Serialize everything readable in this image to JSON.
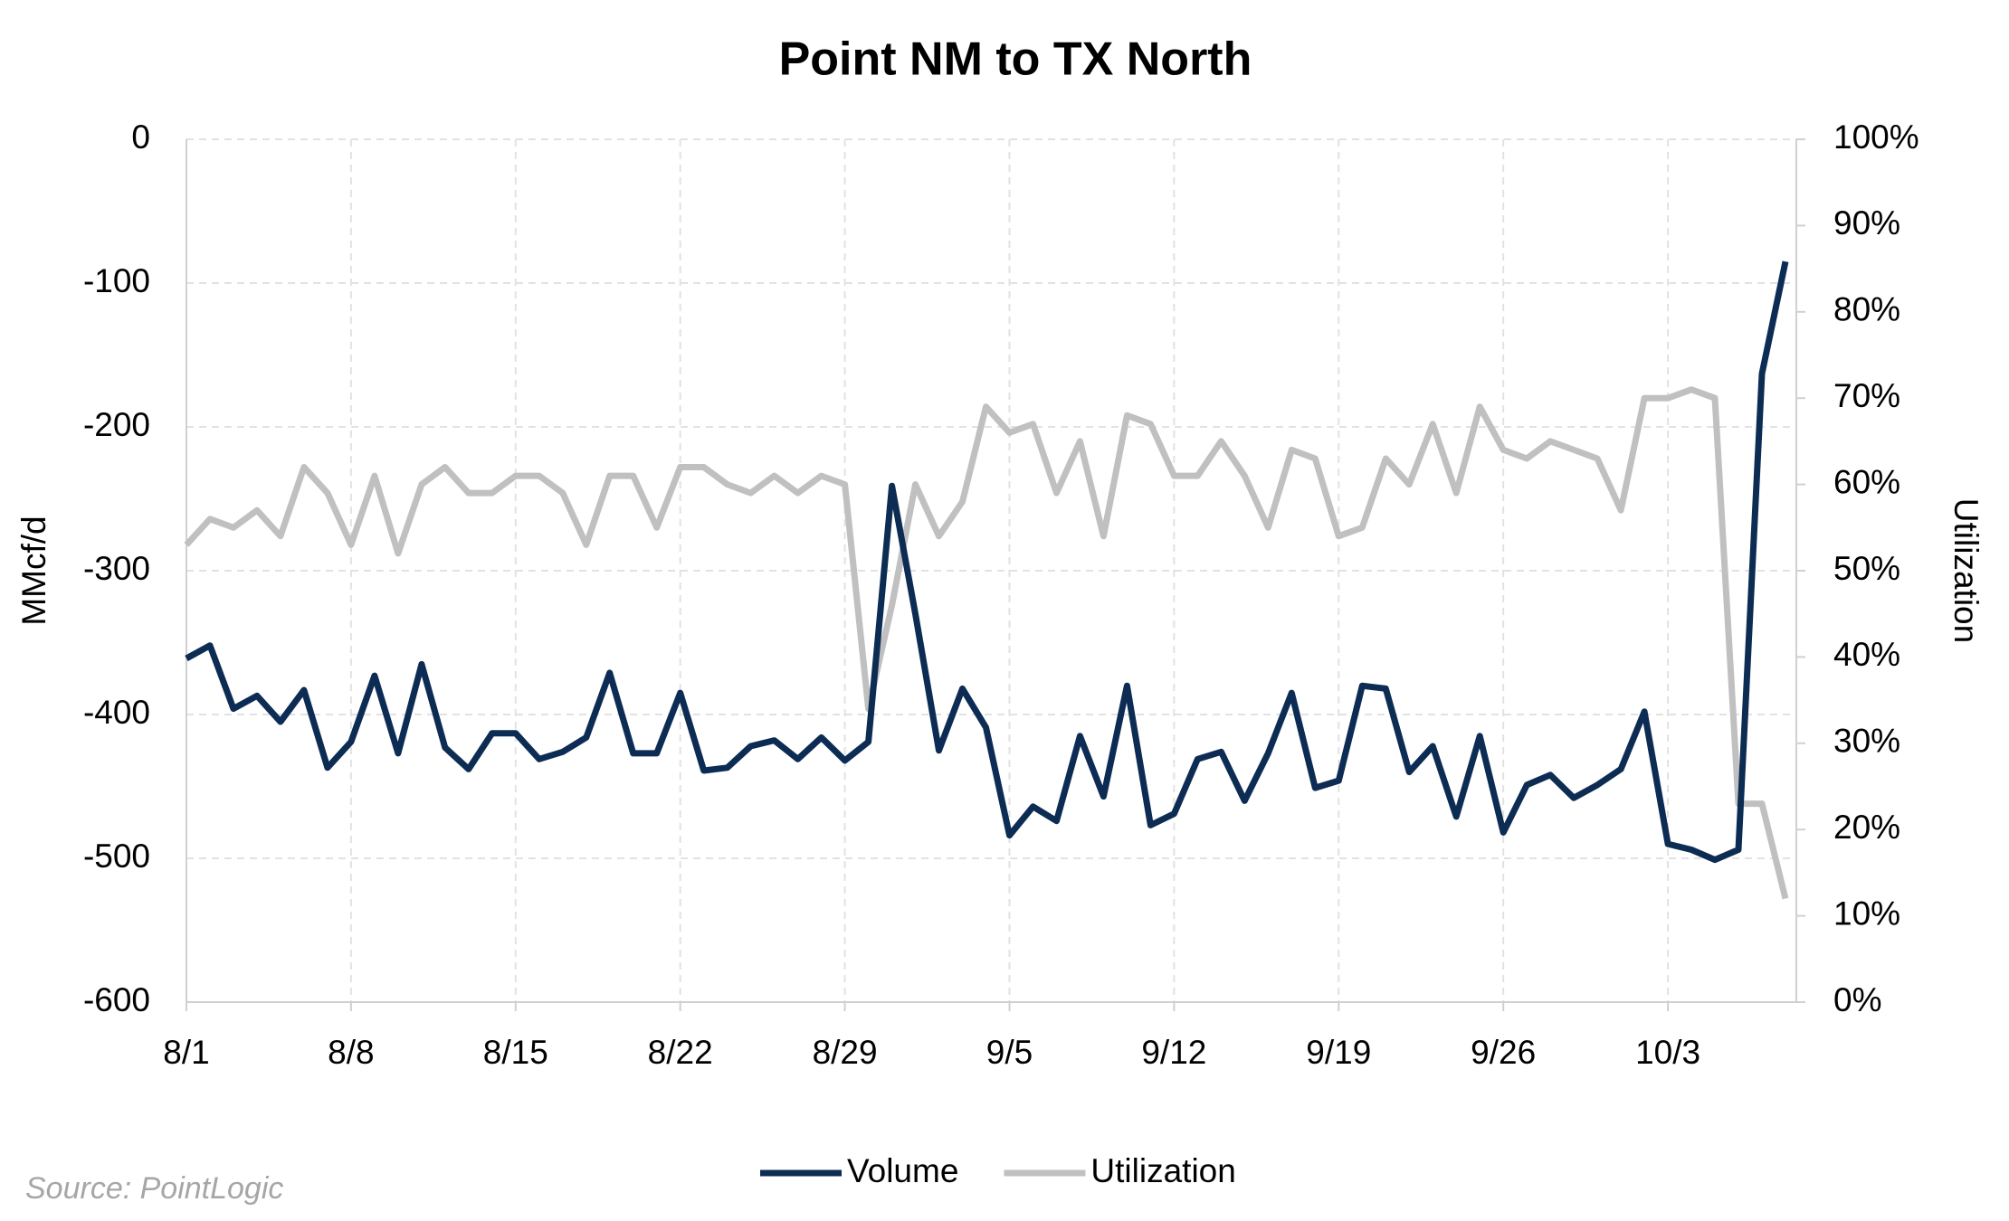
{
  "chart_data": {
    "type": "line",
    "title": "Point NM to TX North",
    "source": "Source: PointLogic",
    "y_label": "MMcf/d",
    "y2_label": "Utilization",
    "categories": [
      "8/1",
      null,
      null,
      null,
      null,
      null,
      null,
      "8/8",
      null,
      null,
      null,
      null,
      null,
      null,
      "8/15",
      null,
      null,
      null,
      null,
      null,
      null,
      "8/22",
      null,
      null,
      null,
      null,
      null,
      null,
      "8/29",
      null,
      null,
      null,
      null,
      null,
      null,
      "9/5",
      null,
      null,
      null,
      null,
      null,
      null,
      "9/12",
      null,
      null,
      null,
      null,
      null,
      null,
      "9/19",
      null,
      null,
      null,
      null,
      null,
      null,
      "9/26",
      null,
      null,
      null,
      null,
      null,
      null,
      "10/3",
      null,
      null,
      null,
      null,
      null
    ],
    "series": [
      {
        "name": "Volume",
        "color": "#0d2c54",
        "values": [
          -361,
          -352,
          -396,
          -387,
          -405,
          -383,
          -437,
          -419,
          -373,
          -427,
          -365,
          -423,
          -438,
          -413,
          -413,
          -431,
          -426,
          -416,
          -371,
          -427,
          -427,
          -385,
          -439,
          -437,
          -422,
          -418,
          -431,
          -416,
          -432,
          -419,
          -241,
          -330,
          -425,
          -382,
          -409,
          -484,
          -464,
          -474,
          -415,
          -457,
          -380,
          -477,
          -469,
          -431,
          -426,
          -460,
          -427,
          -385,
          -451,
          -446,
          -380,
          -382,
          -440,
          -422,
          -471,
          -415,
          -482,
          -449,
          -442,
          -458,
          -449,
          -438,
          -398,
          -490,
          -494,
          -501,
          -494,
          -163,
          -85
        ]
      },
      {
        "name": "Utilization",
        "color": "#c0c0c0",
        "axis": "y2",
        "values": [
          53,
          56,
          55,
          57,
          54,
          62,
          59,
          53,
          61,
          52,
          60,
          62,
          59,
          59,
          61,
          61,
          59,
          53,
          61,
          61,
          55,
          62,
          62,
          60,
          59,
          61,
          59,
          61,
          60,
          34,
          46,
          60,
          54,
          58,
          69,
          66,
          67,
          59,
          65,
          54,
          68,
          67,
          61,
          61,
          65,
          61,
          55,
          64,
          63,
          54,
          55,
          63,
          60,
          67,
          59,
          69,
          64,
          63,
          65,
          64,
          63,
          57,
          70,
          70,
          71,
          70,
          23,
          23,
          12
        ]
      }
    ],
    "ylim": [
      -600,
      0
    ],
    "yticks": [
      0,
      -100,
      -200,
      -300,
      -400,
      -500,
      -600
    ],
    "y2lim": [
      0,
      100
    ],
    "y2ticks": [
      {
        "value": 100,
        "label": "100%"
      },
      {
        "value": 90,
        "label": "90%"
      },
      {
        "value": 80,
        "label": "80%"
      },
      {
        "value": 70,
        "label": "70%"
      },
      {
        "value": 60,
        "label": "60%"
      },
      {
        "value": 50,
        "label": "50%"
      },
      {
        "value": 40,
        "label": "40%"
      },
      {
        "value": 30,
        "label": "30%"
      },
      {
        "value": 20,
        "label": "20%"
      },
      {
        "value": 10,
        "label": "10%"
      },
      {
        "value": 0,
        "label": "0%"
      }
    ],
    "grid": true,
    "legend": "bottom"
  }
}
